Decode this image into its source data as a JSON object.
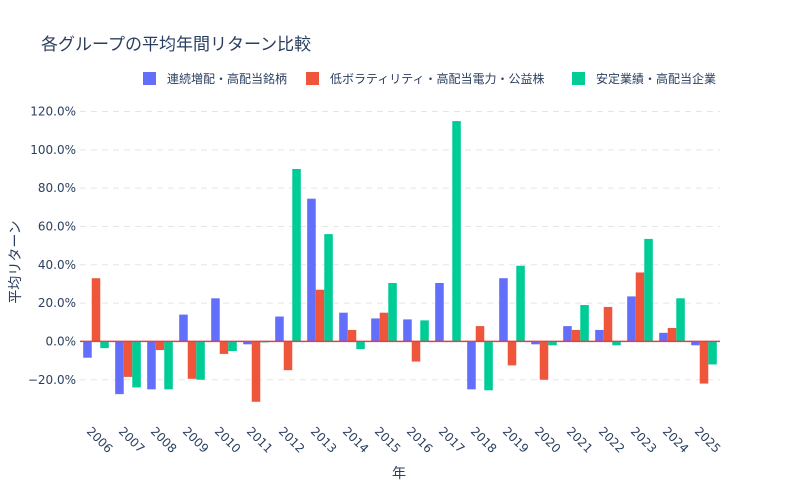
{
  "chart_data": {
    "type": "bar",
    "title": "各グループの平均年間リターン比較",
    "xlabel": "年",
    "ylabel": "平均リターン",
    "categories": [
      "2006",
      "2007",
      "2008",
      "2009",
      "2010",
      "2011",
      "2012",
      "2013",
      "2014",
      "2015",
      "2016",
      "2017",
      "2018",
      "2019",
      "2020",
      "2021",
      "2022",
      "2023",
      "2024",
      "2025"
    ],
    "series": [
      {
        "name": "連続増配・高配当銘柄",
        "color": "#636efa",
        "values": [
          -8.5,
          -27.5,
          -25,
          14,
          22.5,
          -1.5,
          13,
          74.5,
          15,
          12,
          11.5,
          30.5,
          -25,
          33,
          -1.5,
          8,
          6,
          23.5,
          4.5,
          -2
        ]
      },
      {
        "name": "低ボラティリティ・高配当電力・公益株",
        "color": "#ef553b",
        "values": [
          33,
          -18.5,
          -4.5,
          -19.5,
          -6.5,
          -31.5,
          -15,
          27,
          6,
          15,
          -10.5,
          0,
          8,
          -12.5,
          -20,
          6,
          18,
          36,
          7,
          -22
        ]
      },
      {
        "name": "安定業績・高配当企業",
        "color": "#00cc96",
        "values": [
          -3.5,
          -24,
          -25,
          -20,
          -5,
          -0.5,
          90,
          56,
          -4,
          30.5,
          11,
          115,
          -25.5,
          39.5,
          -2,
          19,
          -2,
          53.5,
          22.5,
          -12
        ]
      }
    ],
    "ylim": [
      -41,
      126
    ],
    "yticks": [
      "−20.0%",
      "0.0%",
      "20.0%",
      "40.0%",
      "60.0%",
      "80.0%",
      "100.0%",
      "120.0%"
    ],
    "ytick_values": [
      -20,
      0,
      20,
      40,
      60,
      80,
      100,
      120
    ],
    "legend_position": "top-right",
    "grid": true
  }
}
